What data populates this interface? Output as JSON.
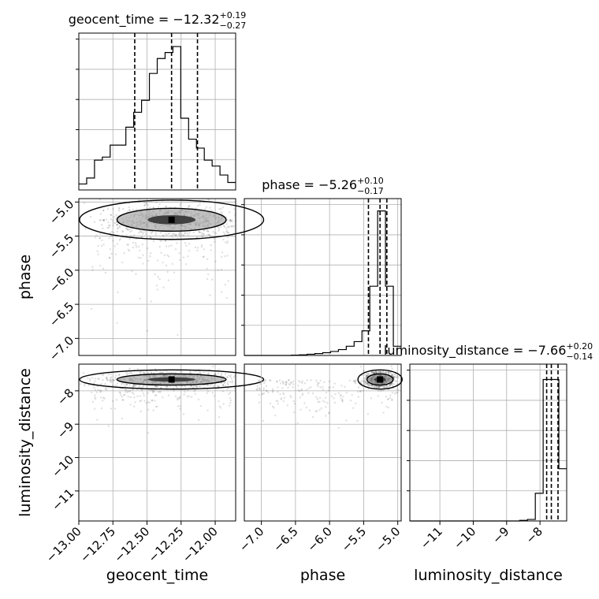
{
  "chart_data": {
    "type": "corner",
    "grid": true,
    "parameters": [
      {
        "name": "geocent_time",
        "axis_label": "geocent_time",
        "title": {
          "prefix": "geocent_time = ",
          "median": "−12.32",
          "plus": "+0.19",
          "minus": "−0.27"
        },
        "range": [
          -13.0,
          -11.85
        ],
        "ticks": [
          -13.0,
          -12.75,
          -12.5,
          -12.25,
          -12.0
        ],
        "tick_labels": [
          "−13.00",
          "−12.75",
          "−12.50",
          "−12.25",
          "−12.00"
        ],
        "quantiles": [
          -12.59,
          -12.32,
          -12.13
        ],
        "hist": {
          "start": -13.0,
          "width": 0.0575,
          "counts": [
            0.04,
            0.08,
            0.2,
            0.22,
            0.3,
            0.3,
            0.42,
            0.52,
            0.6,
            0.78,
            0.88,
            0.92,
            0.96,
            0.48,
            0.34,
            0.28,
            0.2,
            0.16,
            0.1,
            0.05
          ],
          "ymax": 1.05
        }
      },
      {
        "name": "phase",
        "axis_label": "phase",
        "title": {
          "prefix": "phase = ",
          "median": "−5.26",
          "plus": "+0.10",
          "minus": "−0.17"
        },
        "range": [
          -7.25,
          -4.95
        ],
        "ticks": [
          -7.0,
          -6.5,
          -6.0,
          -5.5,
          -5.0
        ],
        "tick_labels": [
          "−7.0",
          "−6.5",
          "−6.0",
          "−5.5",
          "−5.0"
        ],
        "quantiles": [
          -5.43,
          -5.26,
          -5.16
        ],
        "hist": {
          "start": -7.25,
          "width": 0.115,
          "counts": [
            0,
            0,
            0,
            0,
            0,
            0,
            0.002,
            0.004,
            0.008,
            0.012,
            0.018,
            0.026,
            0.038,
            0.06,
            0.09,
            0.16,
            0.45,
            0.94,
            0.45,
            0.06
          ],
          "ymax": 1.02
        }
      },
      {
        "name": "luminosity_distance",
        "axis_label": "luminosity_distance",
        "title": {
          "prefix": "luminosity_distance = ",
          "median": "−7.66",
          "plus": "+0.20",
          "minus": "−0.14"
        },
        "range": [
          -11.9,
          -7.2
        ],
        "ticks": [
          -11,
          -10,
          -9,
          -8
        ],
        "tick_labels": [
          "−11",
          "−10",
          "−9",
          "−8"
        ],
        "quantiles": [
          -7.8,
          -7.66,
          -7.46
        ],
        "hist": {
          "start": -11.9,
          "width": 0.235,
          "counts": [
            0,
            0,
            0,
            0,
            0,
            0,
            0,
            0,
            0,
            0,
            0,
            0,
            0,
            0,
            0.004,
            0.01,
            0.18,
            0.92,
            0.92,
            0.34
          ],
          "ymax": 1.02
        }
      }
    ]
  }
}
